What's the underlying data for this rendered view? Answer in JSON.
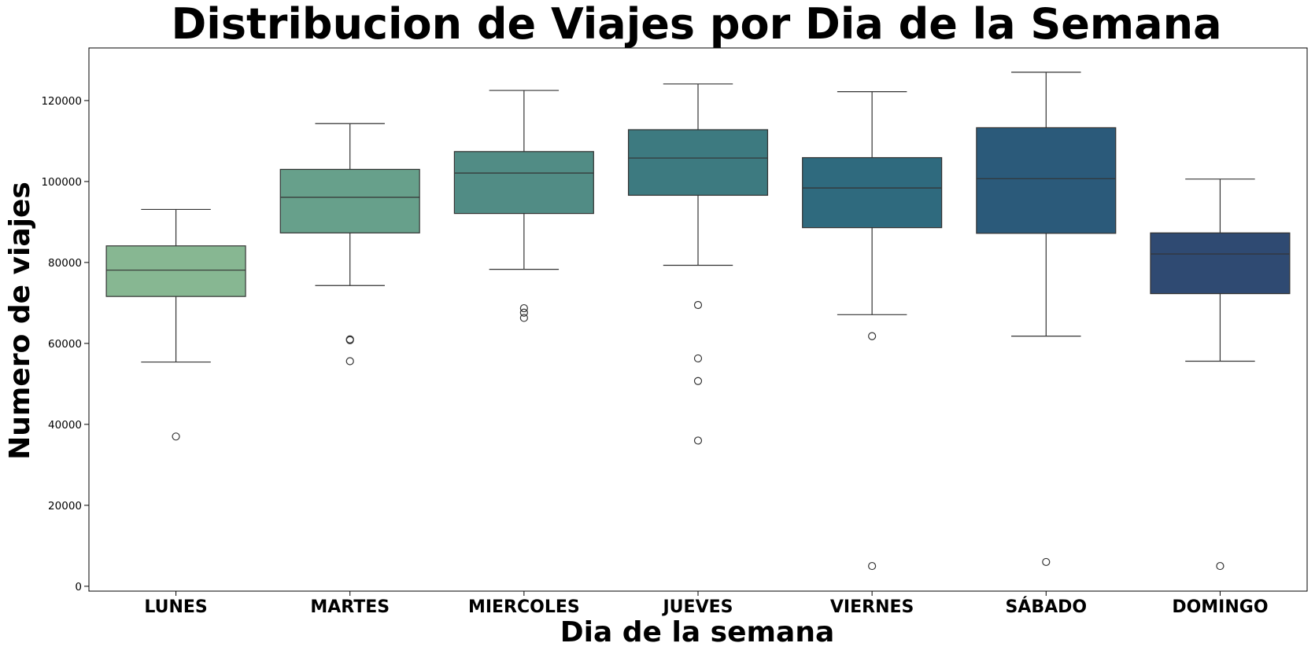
{
  "chart_data": {
    "type": "box",
    "title": "Distribucion de Viajes por Dia de la Semana",
    "xlabel": "Dia de la semana",
    "ylabel": "Numero de viajes",
    "ylim": [
      -1200,
      133000
    ],
    "yticks": [
      0,
      20000,
      40000,
      60000,
      80000,
      100000,
      120000
    ],
    "ytick_labels": [
      "0",
      "20000",
      "40000",
      "60000",
      "80000",
      "100000",
      "120000"
    ],
    "grid": false,
    "legend": "none",
    "categories": [
      "LUNES",
      "MARTES",
      "MIERCOLES",
      "JUEVES",
      "VIERNES",
      "SÁBADO",
      "DOMINGO"
    ],
    "colors": [
      "#87b792",
      "#67a08b",
      "#518c85",
      "#3d7a80",
      "#2f6a7e",
      "#2b5a7a",
      "#2f4a72"
    ],
    "boxes": [
      {
        "whisker_low": 55400,
        "q1": 71600,
        "median": 78100,
        "q3": 84100,
        "whisker_high": 93100,
        "outliers": [
          37000
        ]
      },
      {
        "whisker_low": 74300,
        "q1": 87300,
        "median": 96100,
        "q3": 103000,
        "whisker_high": 114300,
        "outliers": [
          60800,
          61000,
          55600
        ]
      },
      {
        "whisker_low": 78300,
        "q1": 92100,
        "median": 102100,
        "q3": 107400,
        "whisker_high": 122500,
        "outliers": [
          68700,
          67600,
          66300
        ]
      },
      {
        "whisker_low": 79300,
        "q1": 96600,
        "median": 105800,
        "q3": 112800,
        "whisker_high": 124100,
        "outliers": [
          69500,
          56300,
          50700,
          36000
        ]
      },
      {
        "whisker_low": 67100,
        "q1": 88600,
        "median": 98400,
        "q3": 105900,
        "whisker_high": 122200,
        "outliers": [
          61800,
          5000
        ]
      },
      {
        "whisker_low": 61800,
        "q1": 87200,
        "median": 100700,
        "q3": 113300,
        "whisker_high": 127000,
        "outliers": [
          6000
        ]
      },
      {
        "whisker_low": 55600,
        "q1": 72300,
        "median": 82100,
        "q3": 87300,
        "whisker_high": 100600,
        "outliers": [
          5000
        ]
      }
    ]
  }
}
